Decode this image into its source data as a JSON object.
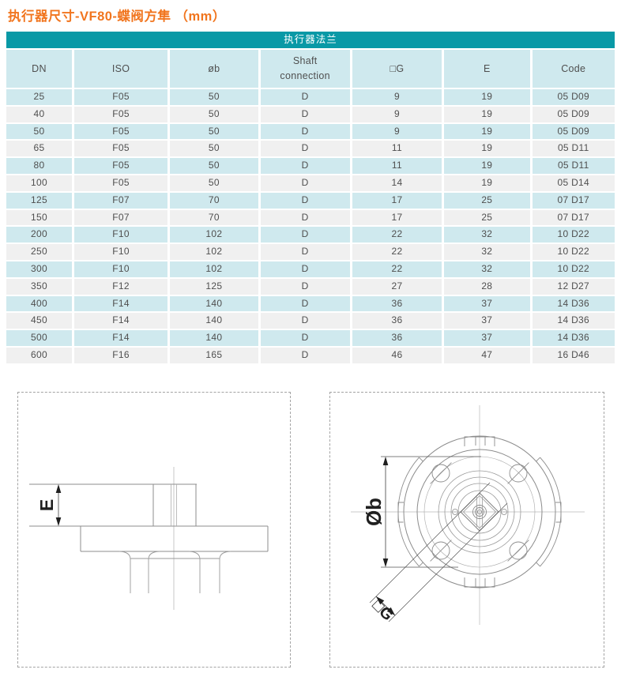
{
  "page": {
    "title": "执行器尺寸-VF80-蝶阀方隼 （mm）"
  },
  "table": {
    "band_title": "执行器法兰",
    "columns": [
      {
        "key": "dn",
        "label": "DN"
      },
      {
        "key": "iso",
        "label": "ISO"
      },
      {
        "key": "ob",
        "label": "øb"
      },
      {
        "key": "shaft",
        "label": "Shaft\nconnection"
      },
      {
        "key": "g",
        "label": "□G"
      },
      {
        "key": "e",
        "label": "E"
      },
      {
        "key": "code",
        "label": "Code"
      }
    ],
    "rows": [
      {
        "dn": "25",
        "iso": "F05",
        "ob": "50",
        "shaft": "D",
        "g": "9",
        "e": "19",
        "code": "05 D09"
      },
      {
        "dn": "40",
        "iso": "F05",
        "ob": "50",
        "shaft": "D",
        "g": "9",
        "e": "19",
        "code": "05 D09"
      },
      {
        "dn": "50",
        "iso": "F05",
        "ob": "50",
        "shaft": "D",
        "g": "9",
        "e": "19",
        "code": "05 D09"
      },
      {
        "dn": "65",
        "iso": "F05",
        "ob": "50",
        "shaft": "D",
        "g": "11",
        "e": "19",
        "code": "05 D11"
      },
      {
        "dn": "80",
        "iso": "F05",
        "ob": "50",
        "shaft": "D",
        "g": "11",
        "e": "19",
        "code": "05 D11"
      },
      {
        "dn": "100",
        "iso": "F05",
        "ob": "50",
        "shaft": "D",
        "g": "14",
        "e": "19",
        "code": "05 D14"
      },
      {
        "dn": "125",
        "iso": "F07",
        "ob": "70",
        "shaft": "D",
        "g": "17",
        "e": "25",
        "code": "07 D17"
      },
      {
        "dn": "150",
        "iso": "F07",
        "ob": "70",
        "shaft": "D",
        "g": "17",
        "e": "25",
        "code": "07 D17"
      },
      {
        "dn": "200",
        "iso": "F10",
        "ob": "102",
        "shaft": "D",
        "g": "22",
        "e": "32",
        "code": "10 D22"
      },
      {
        "dn": "250",
        "iso": "F10",
        "ob": "102",
        "shaft": "D",
        "g": "22",
        "e": "32",
        "code": "10 D22"
      },
      {
        "dn": "300",
        "iso": "F10",
        "ob": "102",
        "shaft": "D",
        "g": "22",
        "e": "32",
        "code": "10 D22"
      },
      {
        "dn": "350",
        "iso": "F12",
        "ob": "125",
        "shaft": "D",
        "g": "27",
        "e": "28",
        "code": "12 D27"
      },
      {
        "dn": "400",
        "iso": "F14",
        "ob": "140",
        "shaft": "D",
        "g": "36",
        "e": "37",
        "code": "14 D36"
      },
      {
        "dn": "450",
        "iso": "F14",
        "ob": "140",
        "shaft": "D",
        "g": "36",
        "e": "37",
        "code": "14 D36"
      },
      {
        "dn": "500",
        "iso": "F14",
        "ob": "140",
        "shaft": "D",
        "g": "36",
        "e": "37",
        "code": "14 D36"
      },
      {
        "dn": "600",
        "iso": "F16",
        "ob": "165",
        "shaft": "D",
        "g": "46",
        "e": "47",
        "code": "16 D46"
      }
    ]
  },
  "drawings": {
    "side_view": {
      "dim_e_label": "E"
    },
    "front_view": {
      "dim_ob_label": "Øb",
      "dim_g_label": "□G"
    }
  },
  "colors": {
    "title_orange": "#f1751e",
    "header_teal": "#0999a6",
    "row_blue": "#cfe9ee",
    "row_gray": "#f0f0f0",
    "cell_text": "#4f4f4f"
  }
}
